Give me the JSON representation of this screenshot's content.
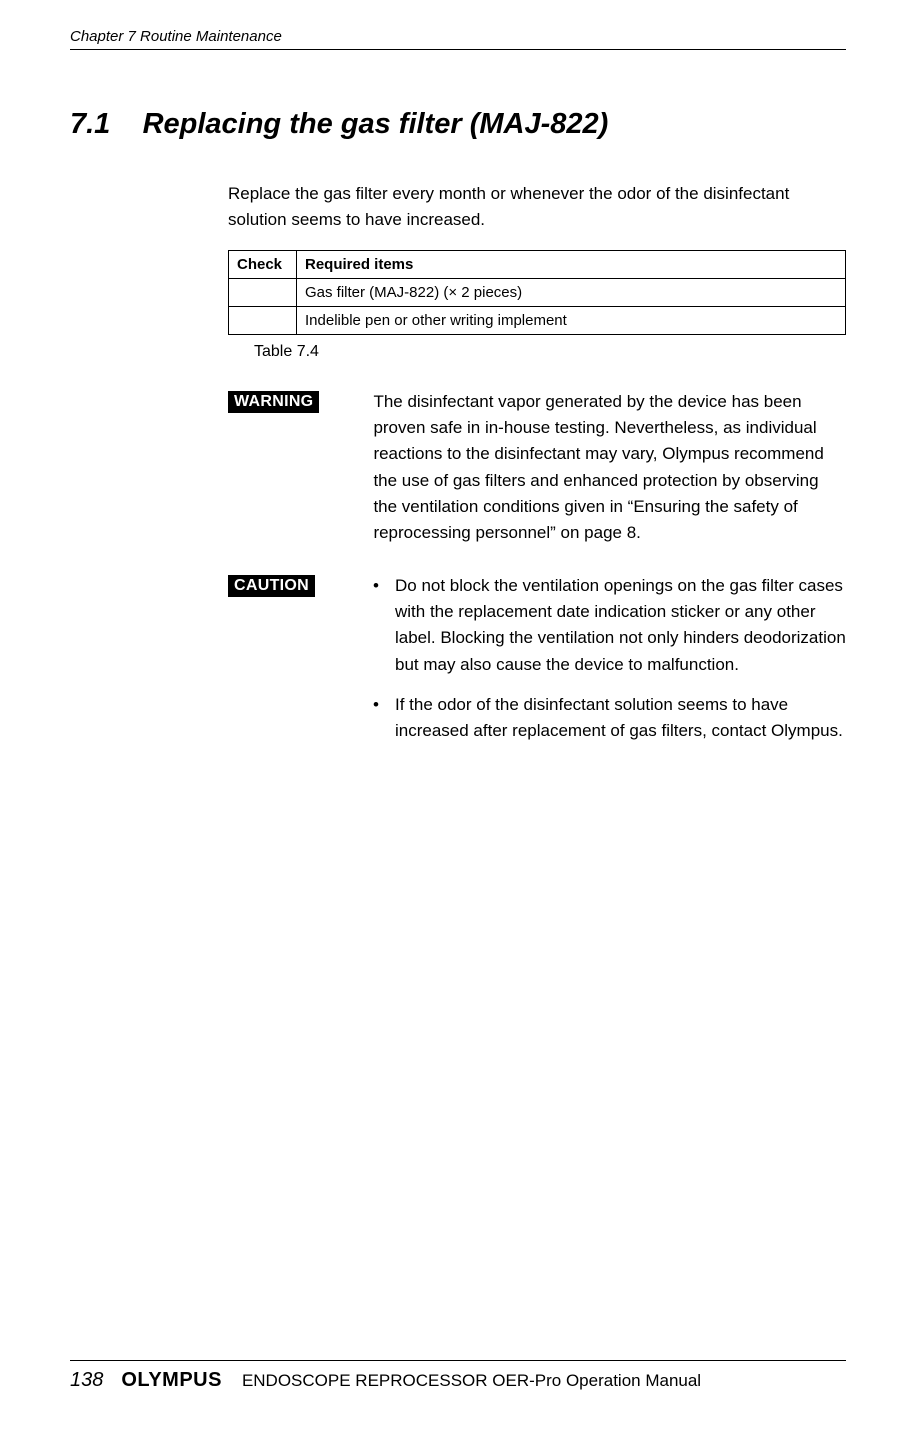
{
  "header": {
    "running_head": "Chapter 7  Routine Maintenance"
  },
  "section": {
    "number": "7.1",
    "title": "Replacing the gas filter (MAJ-822)"
  },
  "intro": "Replace the gas filter every month or whenever the odor of the disinfectant solution seems to have increased.",
  "table": {
    "headers": {
      "check": "Check",
      "required": "Required items"
    },
    "rows": [
      {
        "check": "",
        "required": "Gas filter (MAJ-822) (× 2 pieces)"
      },
      {
        "check": "",
        "required": "Indelible pen or other writing implement"
      }
    ],
    "caption": "Table 7.4"
  },
  "warning": {
    "label": "WARNING",
    "text": "The disinfectant vapor generated by the device has been proven safe in in-house testing. Nevertheless, as individual reactions to the disinfectant may vary, Olympus recommend the use of gas filters and enhanced protection by observing the ventilation conditions given in “Ensuring the safety of reprocessing personnel” on page 8."
  },
  "caution": {
    "label": "CAUTION",
    "items": [
      "Do not block the ventilation openings on the gas filter cases with the replacement date indication sticker or any other label. Blocking the ventilation not only hinders deodorization but may also cause the device to malfunction.",
      "If the odor of the disinfectant solution seems to have increased after replacement of gas filters, contact Olympus."
    ]
  },
  "footer": {
    "page_number": "138",
    "brand": "OLYMPUS",
    "manual_title": "ENDOSCOPE REPROCESSOR OER-Pro Operation Manual"
  }
}
